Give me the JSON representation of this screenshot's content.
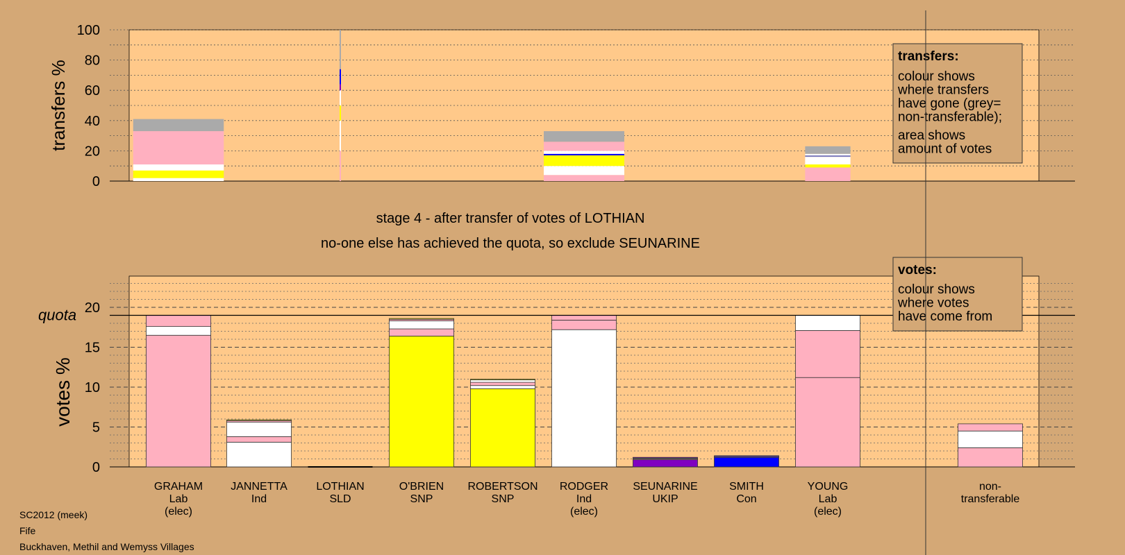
{
  "chart_data": [
    {
      "type": "bar",
      "ylabel": "transfers %",
      "ylim": [
        0,
        100
      ],
      "yticks": [
        0,
        20,
        40,
        60,
        80,
        100
      ],
      "grid": true,
      "legend": {
        "title": "transfers:",
        "lines": [
          "colour shows",
          "where transfers",
          "have gone (grey=",
          "non-transferable);",
          "",
          "area shows",
          "amount of votes"
        ]
      },
      "bars": [
        {
          "candidate": "GRAHAM",
          "width_fraction": 0.9,
          "segments": [
            {
              "color": "#ffffff",
              "value": 2
            },
            {
              "color": "#ffff00",
              "value": 5
            },
            {
              "color": "#ffffff",
              "value": 4
            },
            {
              "color": "#ffb0c0",
              "value": 22
            },
            {
              "color": "#aaaaaa",
              "value": 8
            }
          ]
        },
        {
          "candidate": "LOTHIAN",
          "width_fraction": 0.01,
          "segments": [
            {
              "color": "#ffb0c0",
              "value": 20
            },
            {
              "color": "#ffffff",
              "value": 20
            },
            {
              "color": "#ffff00",
              "value": 10
            },
            {
              "color": "#ffffff",
              "value": 10
            },
            {
              "color": "#8000c0",
              "value": 4
            },
            {
              "color": "#0000ff",
              "value": 10
            },
            {
              "color": "#aaaaaa",
              "value": 26
            }
          ]
        },
        {
          "candidate": "RODGER",
          "width_fraction": 0.8,
          "segments": [
            {
              "color": "#ffb0c0",
              "value": 4
            },
            {
              "color": "#ffffff",
              "value": 6
            },
            {
              "color": "#ffff00",
              "value": 7
            },
            {
              "color": "#0000ff",
              "value": 1
            },
            {
              "color": "#ffffff",
              "value": 2
            },
            {
              "color": "#ffb0c0",
              "value": 6
            },
            {
              "color": "#aaaaaa",
              "value": 7
            }
          ]
        },
        {
          "candidate": "YOUNG",
          "width_fraction": 0.45,
          "segments": [
            {
              "color": "#ffb0c0",
              "value": 9
            },
            {
              "color": "#ffff00",
              "value": 2
            },
            {
              "color": "#ffffff",
              "value": 5
            },
            {
              "color": "#8080c0",
              "value": 1
            },
            {
              "color": "#ffffff",
              "value": 1
            },
            {
              "color": "#aaaaaa",
              "value": 5
            }
          ]
        }
      ]
    },
    {
      "type": "bar",
      "ylabel": "votes %",
      "ylim": [
        0,
        24
      ],
      "yticks": [
        0,
        5,
        10,
        15,
        20
      ],
      "quota": 19,
      "quota_label": "quota",
      "grid": true,
      "legend": {
        "title": "votes:",
        "lines": [
          "colour shows",
          "where votes",
          "have come from"
        ]
      },
      "categories": [
        "GRAHAM",
        "JANNETTA",
        "LOTHIAN",
        "O'BRIEN",
        "ROBERTSON",
        "RODGER",
        "SEUNARINE",
        "SMITH",
        "YOUNG",
        "non-transferable"
      ],
      "bars": [
        {
          "label": [
            "GRAHAM",
            "Lab",
            "(elec)"
          ],
          "segments": [
            {
              "color": "#ffb0c0",
              "value": 16.5
            },
            {
              "color": "#ffffff",
              "value": 1.1
            },
            {
              "color": "#ffb0c0",
              "value": 1.4
            }
          ]
        },
        {
          "label": [
            "JANNETTA",
            "Ind"
          ],
          "segments": [
            {
              "color": "#ffffff",
              "value": 3.1
            },
            {
              "color": "#ffb0c0",
              "value": 0.7
            },
            {
              "color": "#ffffff",
              "value": 1.8
            },
            {
              "color": "#ffb0c0",
              "value": 0.2
            },
            {
              "color": "#ffff00",
              "value": 0.1
            }
          ]
        },
        {
          "label": [
            "LOTHIAN",
            "SLD"
          ],
          "segments": []
        },
        {
          "label": [
            "O'BRIEN",
            "SNP"
          ],
          "segments": [
            {
              "color": "#ffff00",
              "value": 16.4
            },
            {
              "color": "#ffb0c0",
              "value": 0.9
            },
            {
              "color": "#ffffff",
              "value": 1.0
            },
            {
              "color": "#ffb0c0",
              "value": 0.2
            },
            {
              "color": "#ffff00",
              "value": 0.1
            }
          ]
        },
        {
          "label": [
            "ROBERTSON",
            "SNP"
          ],
          "segments": [
            {
              "color": "#ffff00",
              "value": 9.8
            },
            {
              "color": "#ffffff",
              "value": 0.4
            },
            {
              "color": "#ffb0c0",
              "value": 0.4
            },
            {
              "color": "#ffffff",
              "value": 0.3
            },
            {
              "color": "#ffff00",
              "value": 0.1
            }
          ]
        },
        {
          "label": [
            "RODGER",
            "Ind",
            "(elec)"
          ],
          "segments": [
            {
              "color": "#ffffff",
              "value": 17.2
            },
            {
              "color": "#ffb0c0",
              "value": 1.2
            },
            {
              "color": "#ffb0c0",
              "value": 0.6
            }
          ]
        },
        {
          "label": [
            "SEUNARINE",
            "UKIP"
          ],
          "segments": [
            {
              "color": "#8000c0",
              "value": 0.9
            },
            {
              "color": "#ffb0c0",
              "value": 0.1
            },
            {
              "color": "#ffffff",
              "value": 0.1
            },
            {
              "color": "#8000c0",
              "value": 0.1
            }
          ]
        },
        {
          "label": [
            "SMITH",
            "Con"
          ],
          "segments": [
            {
              "color": "#0000ff",
              "value": 1.2
            },
            {
              "color": "#ffb0c0",
              "value": 0.1
            },
            {
              "color": "#0000ff",
              "value": 0.1
            }
          ]
        },
        {
          "label": [
            "YOUNG",
            "Lab",
            "(elec)"
          ],
          "segments": [
            {
              "color": "#ffb0c0",
              "value": 11.2
            },
            {
              "color": "#ffb0c0",
              "value": 5.9
            },
            {
              "color": "#ffffff",
              "value": 1.9
            }
          ]
        },
        {
          "label": [
            "non-",
            "transferable"
          ],
          "segments": [
            {
              "color": "#ffb0c0",
              "value": 2.4
            },
            {
              "color": "#ffffff",
              "value": 2.1
            },
            {
              "color": "#ffb0c0",
              "value": 0.9
            }
          ]
        }
      ]
    }
  ],
  "stage_title": "stage 4 - after transfer of votes of LOTHIAN",
  "stage_subtitle": "no-one else has achieved the quota, so exclude SEUNARINE",
  "footer": {
    "line1": "SC2012 (meek)",
    "line2": "Fife",
    "line3": "Buckhaven, Methil and Wemyss Villages"
  },
  "colors": {
    "background": "#d4a876",
    "plot_area": "#ffc98a",
    "Lab": "#ffb0c0",
    "Ind": "#ffffff",
    "SNP": "#ffff00",
    "UKIP": "#8000c0",
    "Con": "#0000ff",
    "non-transferable": "#aaaaaa"
  }
}
